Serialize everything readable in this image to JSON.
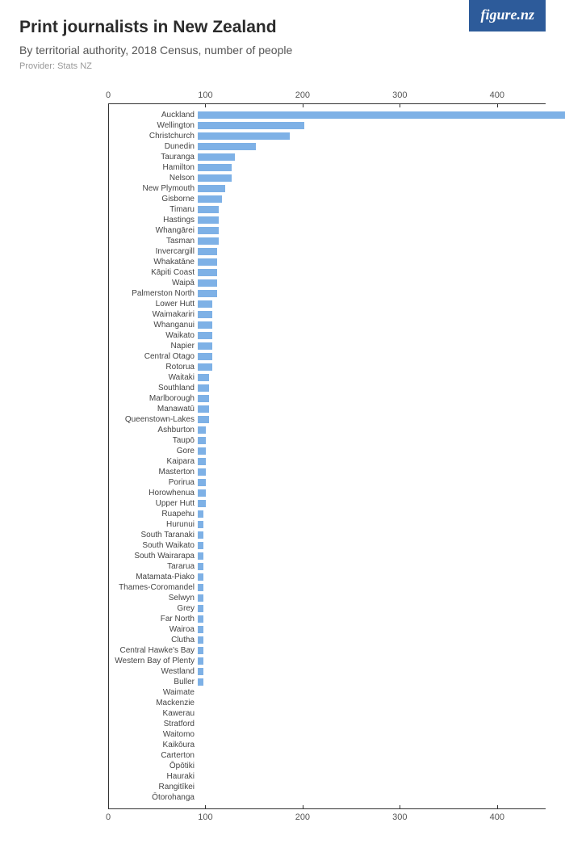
{
  "logo_text": "figure.nz",
  "title": "Print journalists in New Zealand",
  "subtitle": "By territorial authority, 2018 Census, number of people",
  "provider": "Provider: Stats NZ",
  "chart": {
    "type": "bar",
    "orientation": "horizontal",
    "bar_color": "#7eb1e6",
    "axis_color": "#333333",
    "label_color": "#444444",
    "tick_color": "#555555",
    "background_color": "#ffffff",
    "xlim": [
      0,
      450
    ],
    "xticks": [
      0,
      100,
      200,
      300,
      400
    ],
    "label_fontsize": 10,
    "tick_fontsize": 11,
    "categories": [
      "Auckland",
      "Wellington",
      "Christchurch",
      "Dunedin",
      "Tauranga",
      "Hamilton",
      "Nelson",
      "New Plymouth",
      "Gisborne",
      "Timaru",
      "Hastings",
      "Whangārei",
      "Tasman",
      "Invercargill",
      "Whakatāne",
      "Kāpiti Coast",
      "Waipā",
      "Palmerston North",
      "Lower Hutt",
      "Waimakariri",
      "Whanganui",
      "Waikato",
      "Napier",
      "Central Otago",
      "Rotorua",
      "Waitaki",
      "Southland",
      "Marlborough",
      "Manawatū",
      "Queenstown-Lakes",
      "Ashburton",
      "Taupō",
      "Gore",
      "Kaipara",
      "Masterton",
      "Porirua",
      "Horowhenua",
      "Upper Hutt",
      "Ruapehu",
      "Hurunui",
      "South Taranaki",
      "South Waikato",
      "South Wairarapa",
      "Tararua",
      "Matamata-Piako",
      "Thames-Coromandel",
      "Selwyn",
      "Grey",
      "Far North",
      "Wairoa",
      "Clutha",
      "Central Hawke's Bay",
      "Western Bay of Plenty",
      "Westland",
      "Buller",
      "Waimate",
      "Mackenzie",
      "Kawerau",
      "Stratford",
      "Waitomo",
      "Kaikōura",
      "Carterton",
      "Ōpōtiki",
      "Hauraki",
      "Rangitīkei",
      "Ōtorohanga"
    ],
    "values": [
      408,
      110,
      95,
      60,
      38,
      35,
      35,
      28,
      25,
      22,
      22,
      22,
      22,
      20,
      20,
      20,
      20,
      20,
      15,
      15,
      15,
      15,
      15,
      15,
      15,
      12,
      12,
      12,
      12,
      12,
      8,
      8,
      8,
      8,
      8,
      8,
      8,
      8,
      6,
      6,
      6,
      6,
      6,
      6,
      6,
      6,
      6,
      6,
      6,
      6,
      6,
      6,
      6,
      6,
      6,
      0,
      0,
      0,
      0,
      0,
      0,
      0,
      0,
      0,
      0,
      0
    ]
  }
}
